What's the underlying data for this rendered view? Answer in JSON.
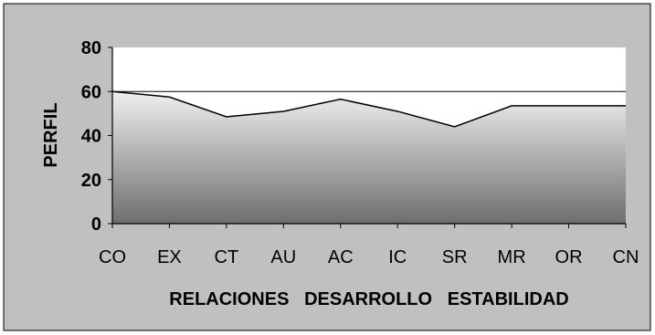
{
  "chart_data": {
    "type": "area",
    "categories": [
      "CO",
      "EX",
      "CT",
      "AU",
      "AC",
      "IC",
      "SR",
      "MR",
      "OR",
      "CN"
    ],
    "series": [
      {
        "values": [
          60,
          57.5,
          48.5,
          51,
          56.5,
          51,
          44,
          53.5,
          53.5,
          53.5
        ]
      }
    ],
    "xlabel": "RELACIONES   DESARROLLO   ESTABILIDAD",
    "ylabel": "PERFIL",
    "ylim": [
      0,
      80
    ],
    "yticks": [
      0,
      20,
      40,
      60,
      80
    ],
    "grid": {
      "horizontal_at": [
        60
      ]
    },
    "legend": "none",
    "colors": {
      "outer_background": "#c0c0c0",
      "plot_background": "#ffffff",
      "area_top": "#efefef",
      "area_bottom": "#6e6e6e",
      "line": "#000000"
    }
  }
}
